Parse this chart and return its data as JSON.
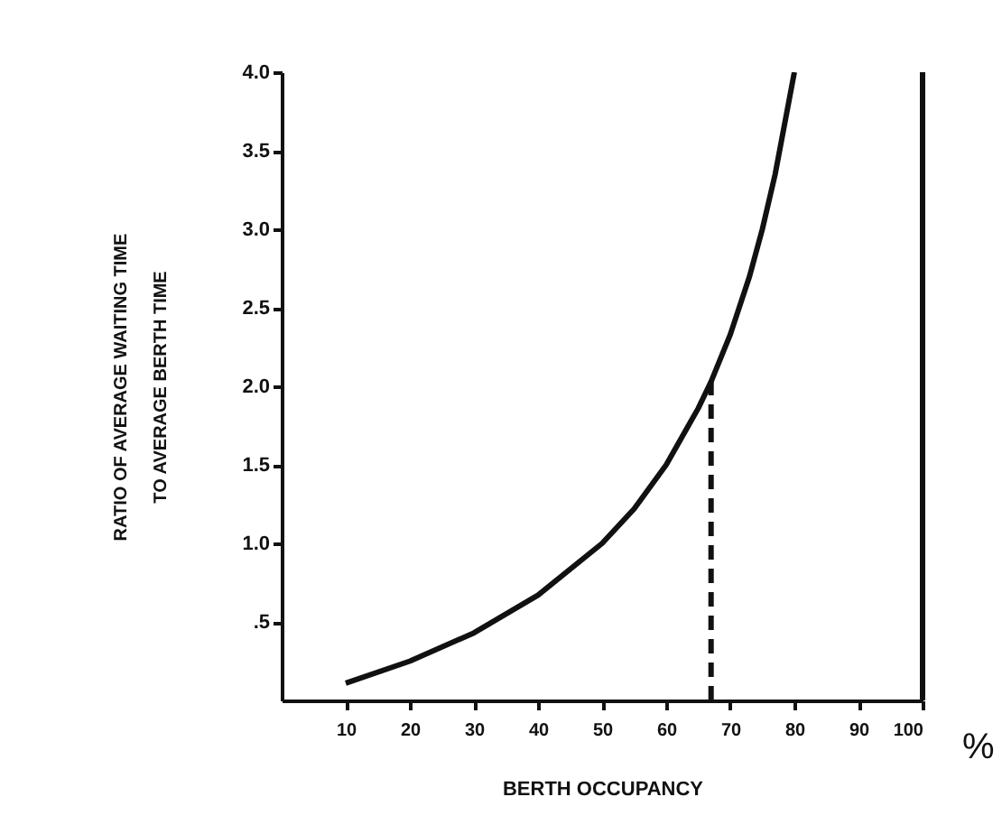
{
  "chart_data": {
    "type": "line",
    "xlabel": "BERTH OCCUPANCY",
    "ylabel": "RATIO OF AVERAGE WAITING TIME\nTO AVERAGE BERTH TIME",
    "series": [
      {
        "color": "#111111",
        "x": [
          10,
          20,
          30,
          40,
          50,
          55,
          60,
          65,
          67,
          70,
          73,
          75,
          77,
          80
        ],
        "values": [
          0.11,
          0.25,
          0.43,
          0.67,
          1.0,
          1.22,
          1.5,
          1.86,
          2.03,
          2.33,
          2.7,
          3.0,
          3.35,
          4.0
        ]
      },
      {
        "color": "#111111",
        "x": [
          67,
          67
        ],
        "values": [
          0,
          2.03
        ],
        "line_style": "dashed"
      }
    ],
    "xlim": [
      0,
      100
    ],
    "xticks": [
      10,
      20,
      30,
      40,
      50,
      60,
      70,
      80,
      90,
      100
    ],
    "ylim": [
      0,
      4.0
    ],
    "yticks": [
      {
        "value": 0.5,
        "label": ".5"
      },
      {
        "value": 1.0,
        "label": "1.0"
      },
      {
        "value": 1.5,
        "label": "1.5"
      },
      {
        "value": 2.0,
        "label": "2.0"
      },
      {
        "value": 2.5,
        "label": "2.5"
      },
      {
        "value": 3.0,
        "label": "3.0"
      },
      {
        "value": 3.5,
        "label": "3.5"
      },
      {
        "value": 4.0,
        "label": "4.0"
      }
    ],
    "ref_lines": [
      {
        "axis": "x",
        "value": 100,
        "color": "#111111",
        "line_style": "solid"
      }
    ],
    "annotations": [
      "%"
    ],
    "grid": false,
    "marker": "none",
    "line_style": "solid"
  }
}
